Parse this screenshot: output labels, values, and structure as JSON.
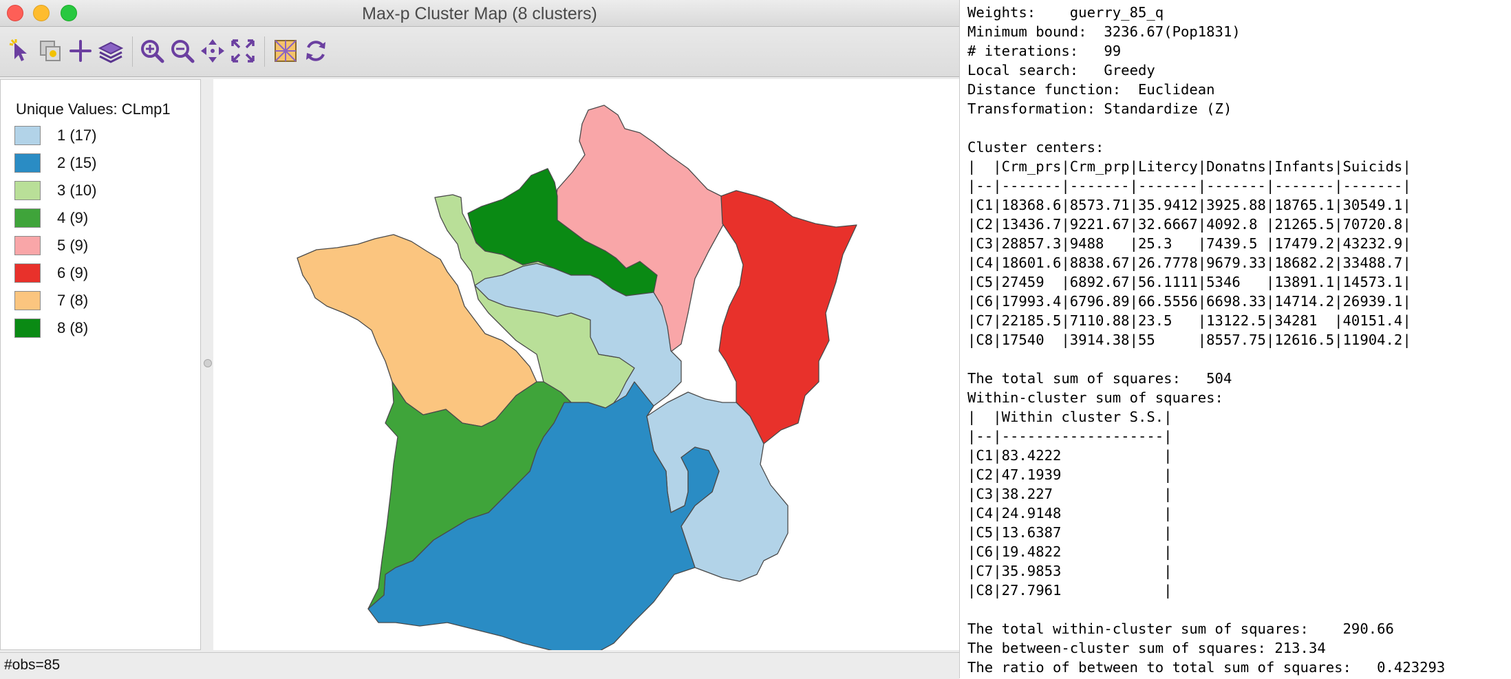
{
  "window": {
    "title": "Max-p Cluster Map (8 clusters)",
    "toolbar": [
      {
        "icon": "select-pointer-icon",
        "name": "select-tool-button"
      },
      {
        "icon": "copy-map-icon",
        "name": "copy-button"
      },
      {
        "icon": "plus-icon",
        "name": "add-layer-button"
      },
      {
        "icon": "layers-icon",
        "name": "layers-button"
      },
      {
        "icon": "zoom-in-icon",
        "name": "zoom-in-button"
      },
      {
        "icon": "zoom-out-icon",
        "name": "zoom-out-button"
      },
      {
        "icon": "pan-icon",
        "name": "pan-button"
      },
      {
        "icon": "full-extent-icon",
        "name": "full-extent-button"
      },
      {
        "icon": "basemap-icon",
        "name": "basemap-button"
      },
      {
        "icon": "refresh-icon",
        "name": "refresh-button"
      }
    ]
  },
  "legend": {
    "title": "Unique Values: CLmp1",
    "items": [
      {
        "label": "1 (17)",
        "color": "#b2d3e8"
      },
      {
        "label": "2 (15)",
        "color": "#2a8cc4"
      },
      {
        "label": "3 (10)",
        "color": "#b9df98"
      },
      {
        "label": "4 (9)",
        "color": "#3fa43a"
      },
      {
        "label": "5 (9)",
        "color": "#f9a6a8"
      },
      {
        "label": "6 (9)",
        "color": "#e8312b"
      },
      {
        "label": "7 (8)",
        "color": "#fbc57f"
      },
      {
        "label": "8 (8)",
        "color": "#0a8a14"
      }
    ]
  },
  "status": {
    "obs": "#obs=85"
  },
  "summary": {
    "lines": [
      "Weights:    guerry_85_q",
      "Minimum bound:  3236.67(Pop1831)",
      "# iterations:   99",
      "Local search:   Greedy",
      "Distance function:  Euclidean",
      "Transformation: Standardize (Z)",
      "",
      "Cluster centers:",
      "|  |Crm_prs|Crm_prp|Litercy|Donatns|Infants|Suicids|",
      "|--|-------|-------|-------|-------|-------|-------|",
      "|C1|18368.6|8573.71|35.9412|3925.88|18765.1|30549.1|",
      "|C2|13436.7|9221.67|32.6667|4092.8 |21265.5|70720.8|",
      "|C3|28857.3|9488   |25.3   |7439.5 |17479.2|43232.9|",
      "|C4|18601.6|8838.67|26.7778|9679.33|18682.2|33488.7|",
      "|C5|27459  |6892.67|56.1111|5346   |13891.1|14573.1|",
      "|C6|17993.4|6796.89|66.5556|6698.33|14714.2|26939.1|",
      "|C7|22185.5|7110.88|23.5   |13122.5|34281  |40151.4|",
      "|C8|17540  |3914.38|55     |8557.75|12616.5|11904.2|",
      "",
      "The total sum of squares:   504",
      "Within-cluster sum of squares:",
      "|  |Within cluster S.S.|",
      "|--|-------------------|",
      "|C1|83.4222            |",
      "|C2|47.1939            |",
      "|C3|38.227             |",
      "|C4|24.9148            |",
      "|C5|13.6387            |",
      "|C6|19.4822            |",
      "|C7|35.9853            |",
      "|C8|27.7961            |",
      "",
      "The total within-cluster sum of squares:    290.66",
      "The between-cluster sum of squares: 213.34",
      "The ratio of between to total sum of squares:   0.423293"
    ]
  }
}
